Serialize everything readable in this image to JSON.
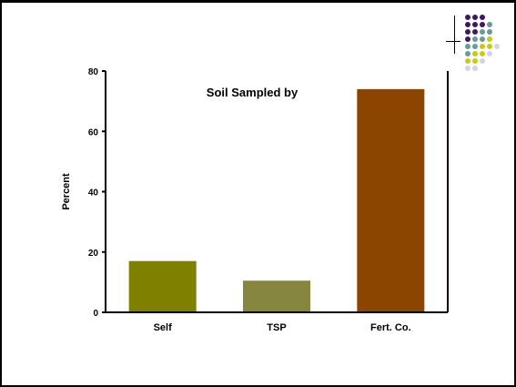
{
  "decoration": {
    "dot_palette": [
      "#3d1a5b",
      "#6b9a9a",
      "#c8c820",
      "#d4d4e4"
    ],
    "dot_rows": [
      [
        0,
        0,
        0
      ],
      [
        0,
        0,
        0,
        1
      ],
      [
        0,
        0,
        1,
        1
      ],
      [
        0,
        1,
        1,
        2
      ],
      [
        1,
        1,
        2,
        2,
        3
      ],
      [
        1,
        2,
        2,
        3
      ],
      [
        2,
        2,
        3
      ],
      [
        3,
        3
      ]
    ]
  },
  "chart_data": {
    "type": "bar",
    "title": "Soil Sampled by",
    "xlabel": "",
    "ylabel": "Percent",
    "categories": [
      "Self",
      "TSP",
      "Fert. Co."
    ],
    "values": [
      17,
      10.5,
      74
    ],
    "bar_colors": [
      "#808000",
      "#868640",
      "#8b4500"
    ],
    "ylim": [
      0,
      80
    ],
    "yticks": [
      0,
      20,
      40,
      60,
      80
    ],
    "ytick_labels": [
      "0",
      "20",
      "40",
      "60",
      "80"
    ],
    "grid": false,
    "legend": "none"
  }
}
